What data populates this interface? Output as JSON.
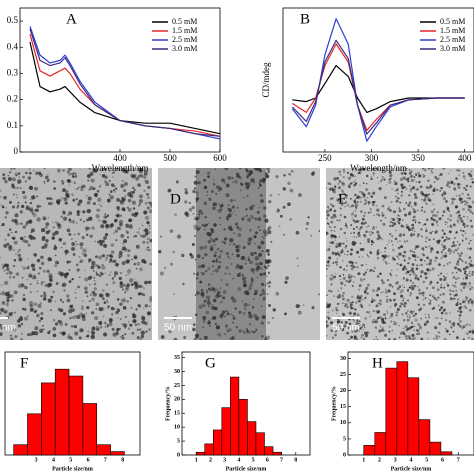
{
  "chart_data": [
    {
      "type": "line",
      "title": "A",
      "xlabel": "Wavelength/nm",
      "xlim": [
        200,
        600
      ],
      "xticks": [
        400,
        500,
        600
      ],
      "ylim": [
        0,
        0.55
      ],
      "yticks": [
        0.0,
        0.1,
        0.2,
        0.3,
        0.4,
        0.5
      ],
      "legend": "upper right",
      "x": [
        220,
        240,
        260,
        280,
        290,
        300,
        320,
        350,
        400,
        450,
        500,
        550,
        600
      ],
      "series": [
        {
          "name": "0.5 mM",
          "color": "#000000",
          "values": [
            0.42,
            0.25,
            0.23,
            0.24,
            0.25,
            0.23,
            0.19,
            0.15,
            0.12,
            0.11,
            0.11,
            0.09,
            0.07
          ]
        },
        {
          "name": "1.5 mM",
          "color": "#e8262a",
          "values": [
            0.45,
            0.31,
            0.29,
            0.31,
            0.32,
            0.3,
            0.24,
            0.18,
            0.12,
            0.1,
            0.09,
            0.08,
            0.06
          ]
        },
        {
          "name": "2.5 mM",
          "color": "#2c3fd6",
          "values": [
            0.48,
            0.37,
            0.34,
            0.35,
            0.37,
            0.34,
            0.27,
            0.19,
            0.12,
            0.1,
            0.09,
            0.07,
            0.05
          ]
        },
        {
          "name": "3.0 mM",
          "color": "#3d2a7a",
          "values": [
            0.47,
            0.35,
            0.33,
            0.34,
            0.36,
            0.33,
            0.26,
            0.18,
            0.12,
            0.1,
            0.09,
            0.07,
            0.06
          ]
        }
      ]
    },
    {
      "type": "line",
      "title": "B",
      "xlabel": "Wavelength/nm",
      "ylabel": "CD/mdeg",
      "xlim": [
        205,
        410
      ],
      "xticks": [
        250,
        300,
        350,
        400
      ],
      "ylim": [
        -150,
        250
      ],
      "legend": "upper right",
      "x": [
        215,
        230,
        240,
        250,
        262,
        275,
        285,
        295,
        305,
        320,
        340,
        370,
        400
      ],
      "series": [
        {
          "name": "0.5 mM",
          "color": "#000000",
          "values": [
            -5,
            -10,
            0,
            40,
            90,
            60,
            0,
            -40,
            -30,
            -10,
            0,
            0,
            0
          ]
        },
        {
          "name": "1.5 mM",
          "color": "#e8262a",
          "values": [
            -15,
            -40,
            0,
            90,
            150,
            100,
            -20,
            -90,
            -60,
            -20,
            -5,
            0,
            0
          ]
        },
        {
          "name": "2.5 mM",
          "color": "#2c3fd6",
          "values": [
            -30,
            -80,
            -20,
            120,
            220,
            150,
            -20,
            -120,
            -80,
            -25,
            -5,
            0,
            0
          ]
        },
        {
          "name": "3.0 mM",
          "color": "#3d2a7a",
          "values": [
            -25,
            -65,
            -10,
            100,
            160,
            110,
            -20,
            -100,
            -70,
            -20,
            -5,
            0,
            0
          ]
        }
      ]
    },
    {
      "type": "histogram",
      "title": "F",
      "xlabel": "Particle size/nm",
      "color": "#ff0000",
      "xlim": [
        1.2,
        9
      ],
      "xticks": [
        3,
        4,
        5,
        6,
        7,
        8
      ],
      "ylim": [
        0,
        30
      ],
      "bins": [
        1.7,
        2.5,
        3.3,
        4.1,
        4.9,
        5.7,
        6.5,
        7.3,
        8.1
      ],
      "values": [
        3,
        12,
        21,
        25,
        23,
        15,
        3,
        1
      ]
    },
    {
      "type": "histogram",
      "title": "G",
      "xlabel": "Particle size/nm",
      "ylabel": "Frequency/%",
      "color": "#ff0000",
      "xlim": [
        0,
        9
      ],
      "xticks": [
        1,
        2,
        3,
        4,
        5,
        6,
        7,
        8
      ],
      "ylim": [
        0,
        37
      ],
      "yticks": [
        0,
        5,
        10,
        15,
        20,
        25,
        30,
        35
      ],
      "bins": [
        1,
        1.6,
        2.2,
        2.8,
        3.4,
        4.0,
        4.6,
        5.2,
        5.8,
        6.4,
        7.0
      ],
      "values": [
        1,
        4,
        9,
        17,
        28,
        20,
        12,
        8,
        3,
        1
      ]
    },
    {
      "type": "histogram",
      "title": "H",
      "xlabel": "Particle size/nm",
      "ylabel": "Frequency/%",
      "color": "#ff0000",
      "xlim": [
        0,
        8
      ],
      "xticks": [
        1,
        2,
        3,
        4,
        5,
        6,
        7
      ],
      "ylim": [
        0,
        32
      ],
      "yticks": [
        0,
        5,
        10,
        15,
        20,
        25,
        30
      ],
      "bins": [
        1,
        1.7,
        2.4,
        3.1,
        3.8,
        4.5,
        5.2,
        5.9,
        6.6
      ],
      "values": [
        3,
        7,
        27,
        29,
        24,
        11,
        4,
        1
      ]
    }
  ],
  "images": [
    {
      "scale_bar": "nm"
    },
    {
      "label": "D",
      "scale_bar": "50 nm"
    },
    {
      "label": "E",
      "scale_bar": "50 nm"
    }
  ]
}
